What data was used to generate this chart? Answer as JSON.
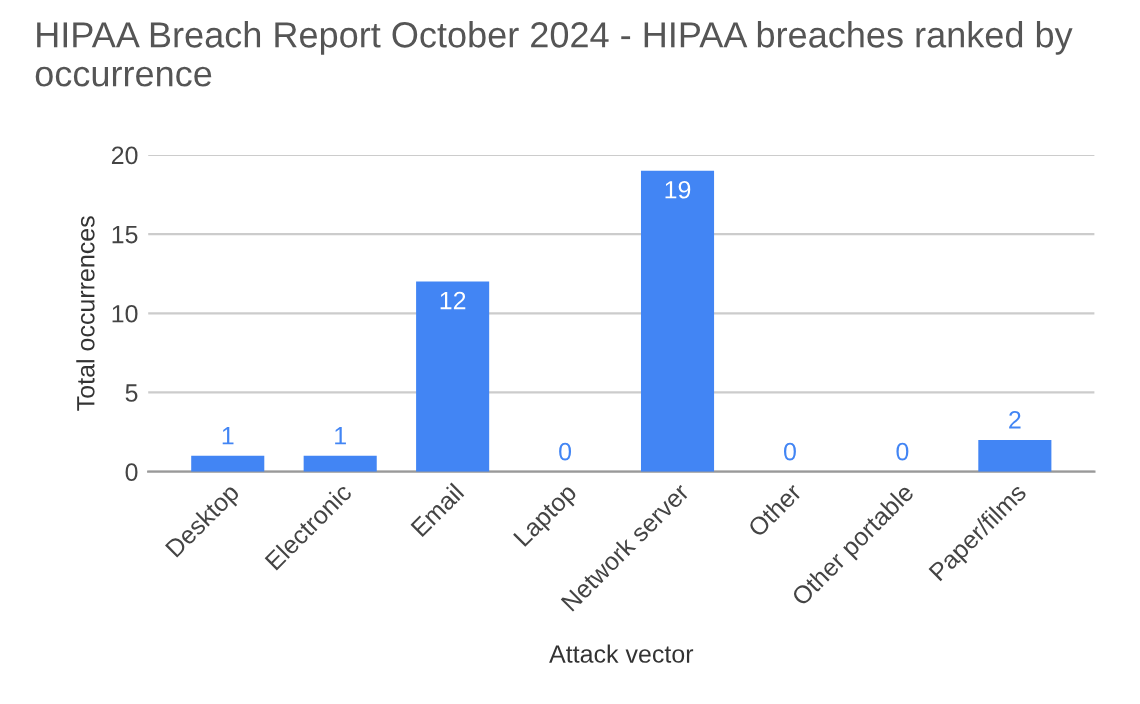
{
  "chart_data": {
    "type": "bar",
    "title": "HIPAA Breach Report October 2024 - HIPAA breaches ranked by occurrence",
    "xlabel": "Attack vector",
    "ylabel": "Total occurrences",
    "categories": [
      "Desktop",
      "Electronic",
      "Email",
      "Laptop",
      "Network server",
      "Other",
      "Other portable",
      "Paper/films"
    ],
    "values": [
      1,
      1,
      12,
      0,
      19,
      0,
      0,
      2
    ],
    "color": "#4285f4",
    "ylim": [
      0,
      20
    ],
    "yticks": [
      0,
      5,
      10,
      15,
      20
    ],
    "grid": "y",
    "data_labels": true
  }
}
